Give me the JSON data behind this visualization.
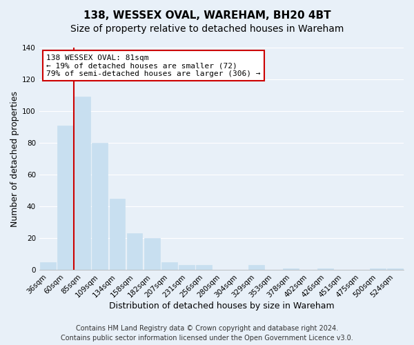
{
  "title": "138, WESSEX OVAL, WAREHAM, BH20 4BT",
  "subtitle": "Size of property relative to detached houses in Wareham",
  "xlabel": "Distribution of detached houses by size in Wareham",
  "ylabel": "Number of detached properties",
  "bar_labels": [
    "36sqm",
    "60sqm",
    "85sqm",
    "109sqm",
    "134sqm",
    "158sqm",
    "182sqm",
    "207sqm",
    "231sqm",
    "256sqm",
    "280sqm",
    "304sqm",
    "329sqm",
    "353sqm",
    "378sqm",
    "402sqm",
    "426sqm",
    "451sqm",
    "475sqm",
    "500sqm",
    "524sqm"
  ],
  "bar_values": [
    5,
    91,
    109,
    80,
    45,
    23,
    20,
    5,
    3,
    3,
    0,
    0,
    3,
    0,
    1,
    0,
    1,
    0,
    0,
    1,
    1
  ],
  "bar_color": "#c8dff0",
  "bar_edge_color": "#c8dff0",
  "vline_color": "#CC0000",
  "vline_x": 1.5,
  "ylim": [
    0,
    140
  ],
  "yticks": [
    0,
    20,
    40,
    60,
    80,
    100,
    120,
    140
  ],
  "annotation_text": "138 WESSEX OVAL: 81sqm\n← 19% of detached houses are smaller (72)\n79% of semi-detached houses are larger (306) →",
  "annotation_box_facecolor": "#ffffff",
  "annotation_box_edgecolor": "#CC0000",
  "footer_line1": "Contains HM Land Registry data © Crown copyright and database right 2024.",
  "footer_line2": "Contains public sector information licensed under the Open Government Licence v3.0.",
  "background_color": "#e8f0f8",
  "plot_background_color": "#e8f0f8",
  "grid_color": "#ffffff",
  "title_fontsize": 11,
  "subtitle_fontsize": 10,
  "tick_label_fontsize": 7.5,
  "axis_label_fontsize": 9,
  "annotation_fontsize": 8,
  "footer_fontsize": 7
}
